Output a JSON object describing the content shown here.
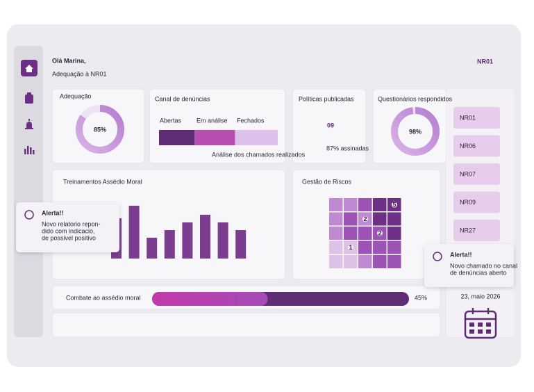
{
  "header": {
    "greeting": "Olá Marina,",
    "subtitle": "Adequação à NR01",
    "badge": "NR01"
  },
  "adequacao": {
    "title": "Adequação",
    "value": 85,
    "value_label": "85%"
  },
  "canal": {
    "title": "Canal de denúncias",
    "segments": [
      {
        "name": "Abertas",
        "value": 30,
        "color": "#5e2d73"
      },
      {
        "name": "Em análise",
        "value": 34,
        "color": "#b64fb0"
      },
      {
        "name": "Fechados",
        "value": 36,
        "color": "#dcc2ea"
      }
    ],
    "note": "Análise dos chamados realizados"
  },
  "politicas": {
    "title": "Políticas publicadas",
    "value": "09",
    "note": "87% assinadas"
  },
  "questionarios": {
    "title": "Questionários respondidos",
    "value": 98,
    "value_label": "98%",
    "items": [
      "NR01",
      "NR06",
      "NR07",
      "NR09",
      "NR27"
    ]
  },
  "treinamentos": {
    "title": "Treinamentos Assédio Moral",
    "values": [
      58,
      76,
      30,
      41,
      52,
      63,
      52,
      41
    ],
    "color": "#7a3d8f"
  },
  "riscos": {
    "title": "Gestão de Riscos",
    "levels": [
      [
        2,
        2,
        3,
        4,
        4
      ],
      [
        2,
        3,
        2,
        4,
        4
      ],
      [
        2,
        3,
        3,
        3,
        4
      ],
      [
        1,
        1,
        3,
        3,
        3
      ],
      [
        1,
        1,
        2,
        3,
        3
      ]
    ],
    "markers": [
      {
        "row": 0,
        "col": 4,
        "count": 5
      },
      {
        "row": 1,
        "col": 2,
        "count": 2
      },
      {
        "row": 2,
        "col": 3,
        "count": 2
      },
      {
        "row": 3,
        "col": 1,
        "count": 1
      }
    ]
  },
  "combate": {
    "label": "Combate ao assédio moral",
    "value": 45,
    "value_label": "45%"
  },
  "date": "23, maio 2026",
  "alerts": [
    {
      "title": "Alerta!!",
      "lines": [
        "Novo relatorio repon-",
        "dido com indicacio,",
        "de possivel positivo"
      ]
    },
    {
      "title": "Alerta!!",
      "lines": [
        "Novo chamado no canal",
        "de denúncias aberto"
      ]
    }
  ]
}
